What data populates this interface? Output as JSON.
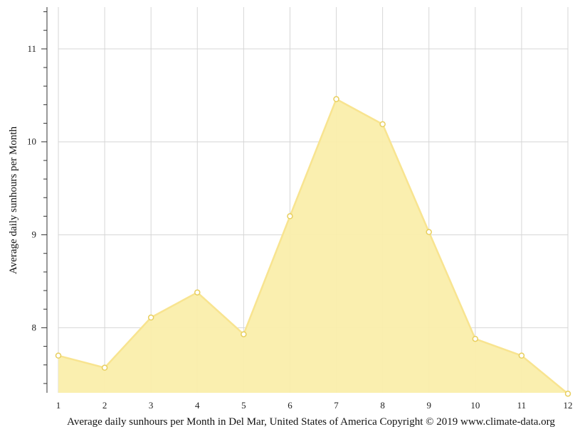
{
  "chart_data": {
    "type": "area",
    "x": [
      1,
      2,
      3,
      4,
      5,
      6,
      7,
      8,
      9,
      10,
      11,
      12
    ],
    "series": [
      {
        "values": [
          7.7,
          7.57,
          8.11,
          8.38,
          7.93,
          9.2,
          10.46,
          10.19,
          9.03,
          7.88,
          7.7,
          7.29
        ]
      }
    ],
    "xlabel": "Average daily sunhours per Month in Del Mar, United States of America Copyright © 2019 www.climate-data.org",
    "ylabel": "Average daily sunhours per Month",
    "xlim": [
      1,
      12
    ],
    "ylim": [
      7.3,
      11.45
    ],
    "y_major_ticks": [
      8,
      9,
      10,
      11
    ],
    "grid": true,
    "legend": "none",
    "colors": {
      "fill": "#faeeab",
      "line": "#f8e490",
      "marker_fill": "#ffffff",
      "marker_stroke": "#e8cf5f",
      "grid": "#d6d6d6",
      "axis": "#333333"
    }
  }
}
